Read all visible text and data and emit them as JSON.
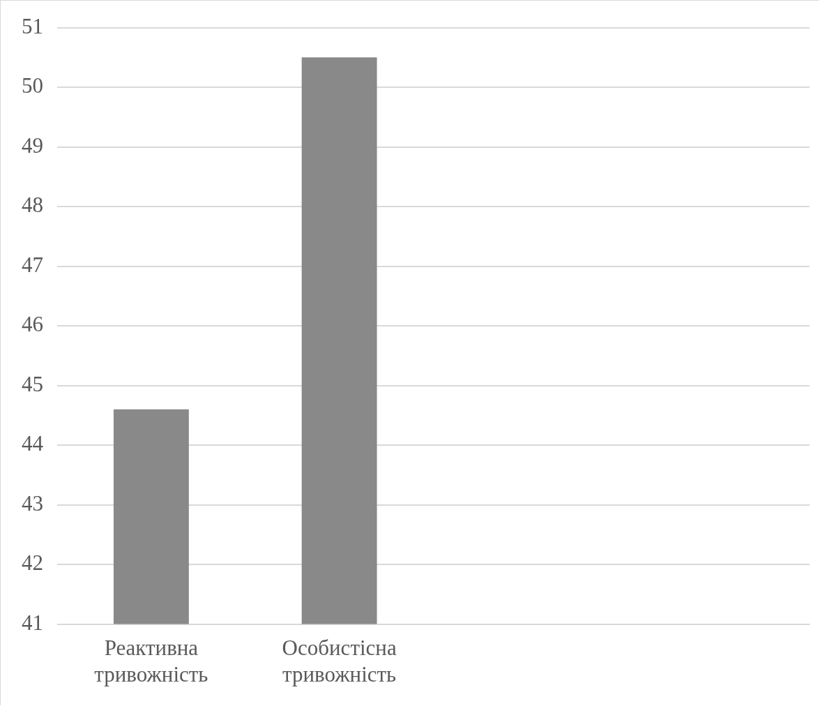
{
  "chart_data": {
    "type": "bar",
    "categories": [
      "Реактивна тривожність",
      "Особистісна тривожність",
      null,
      null
    ],
    "values": [
      44.6,
      50.5,
      null,
      null
    ],
    "color": "#898989",
    "ylim": [
      41,
      51
    ],
    "yticks": [
      41,
      42,
      43,
      44,
      45,
      46,
      47,
      48,
      49,
      50,
      51
    ],
    "grid": "y",
    "legend": false
  }
}
